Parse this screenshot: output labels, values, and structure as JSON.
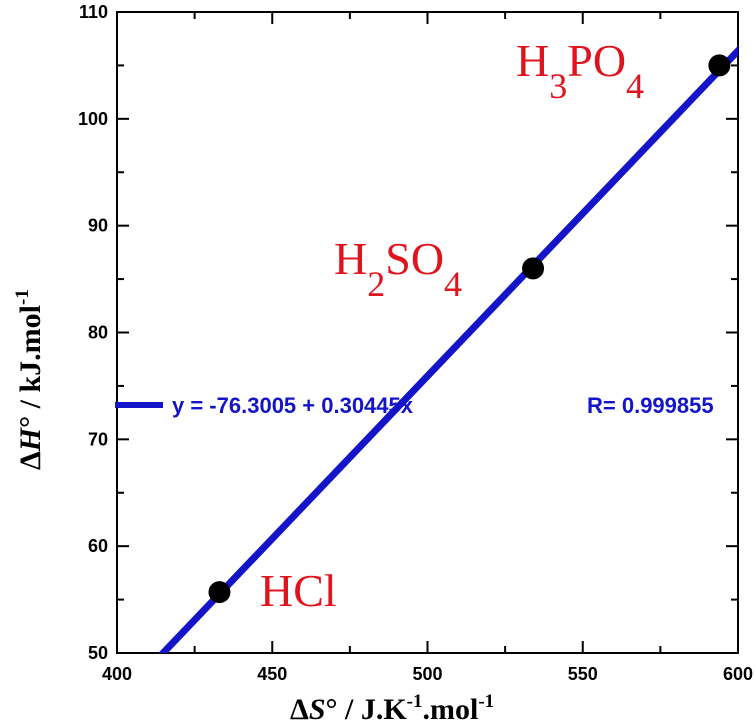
{
  "chart_data": {
    "type": "scatter",
    "title": "",
    "xlabel": {
      "delta": "Δ",
      "symbol": "S",
      "degree": "°",
      "unit": " / J.K",
      "exp1": "-1",
      "unit2": ".mol",
      "exp2": "-1"
    },
    "ylabel": {
      "delta": "Δ",
      "symbol": "H",
      "degree": "°",
      "unit": " / kJ.mol",
      "exp": "-1"
    },
    "xlim": [
      400,
      600
    ],
    "ylim": [
      50,
      110
    ],
    "x_ticks": [
      400,
      450,
      500,
      550,
      600
    ],
    "y_ticks": [
      50,
      60,
      70,
      80,
      90,
      100,
      110
    ],
    "x_tick_labels": [
      "400",
      "450",
      "500",
      "550",
      "600"
    ],
    "y_tick_labels": [
      "50",
      "60",
      "70",
      "80",
      "90",
      "100",
      "110"
    ],
    "points": [
      {
        "x": 433,
        "y": 55.7,
        "label": "HCl"
      },
      {
        "x": 534,
        "y": 86.0,
        "label": "H2SO4"
      },
      {
        "x": 594,
        "y": 105.0,
        "label": "H3PO4"
      }
    ],
    "point_labels": {
      "hcl": {
        "text": "HCl"
      },
      "h2so4": {
        "p1": "H",
        "s1": "2",
        "p2": "SO",
        "s2": "4"
      },
      "h3po4": {
        "p1": "H",
        "s1": "3",
        "p2": "PO",
        "s2": "4"
      }
    },
    "fit": {
      "intercept": -76.3005,
      "slope": 0.30445,
      "equation_text": "y = -76.3005 + 0.30445x",
      "r_text": "R= 0.999855"
    },
    "colors": {
      "line": "#1414c8",
      "points": "#000000",
      "labels": "#e0141e",
      "equation": "#1414c8"
    },
    "grid": false
  }
}
